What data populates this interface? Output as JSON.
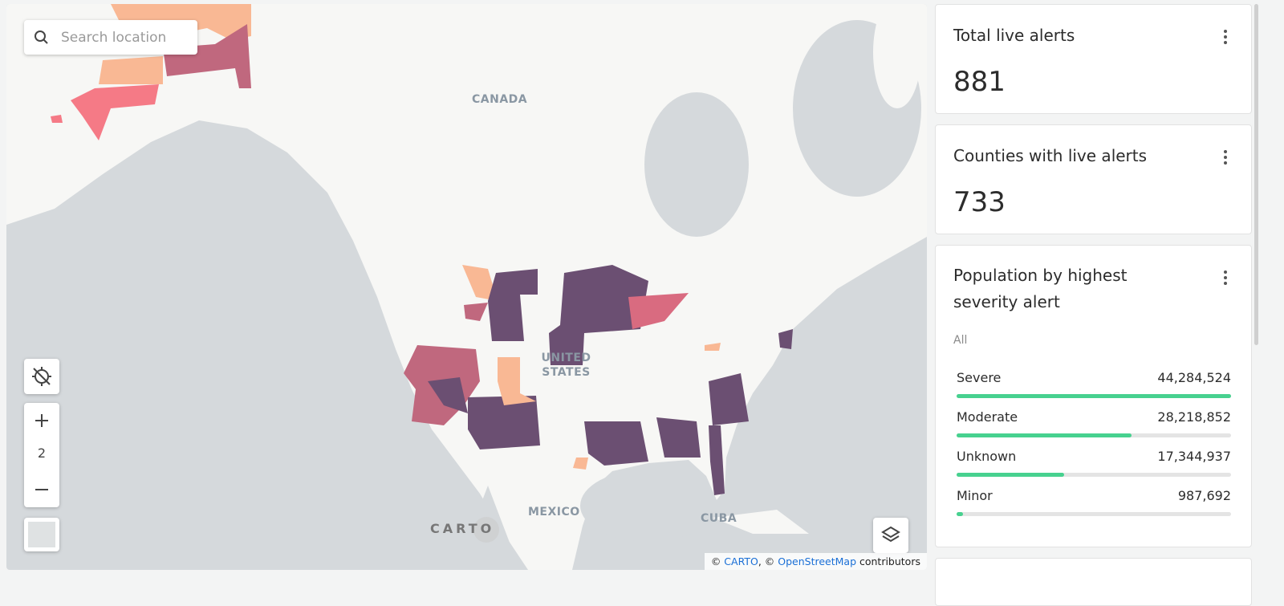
{
  "search": {
    "placeholder": "Search location"
  },
  "map": {
    "labels": [
      "CANADA",
      "UNITED STATES",
      "MEXICO",
      "CUBA"
    ],
    "logo": "CARTO",
    "zoom": "2",
    "attribution": [
      "© ",
      "CARTO",
      ", © ",
      "OpenStreetMap",
      " contributors"
    ]
  },
  "widgets": [
    {
      "title": "Total live alerts",
      "value": "881"
    },
    {
      "title": "Counties with live alerts",
      "value": "733"
    }
  ],
  "population": {
    "title": "Population by highest severity alert",
    "filter": "All",
    "categories": [
      "Severe",
      "Moderate",
      "Unknown",
      "Minor"
    ],
    "values": [
      44284524,
      28218852,
      17344937,
      987692
    ],
    "value_labels": [
      "44,284,524",
      "28,218,852",
      "17,344,937",
      "987,692"
    ],
    "color": "#47d18f"
  }
}
